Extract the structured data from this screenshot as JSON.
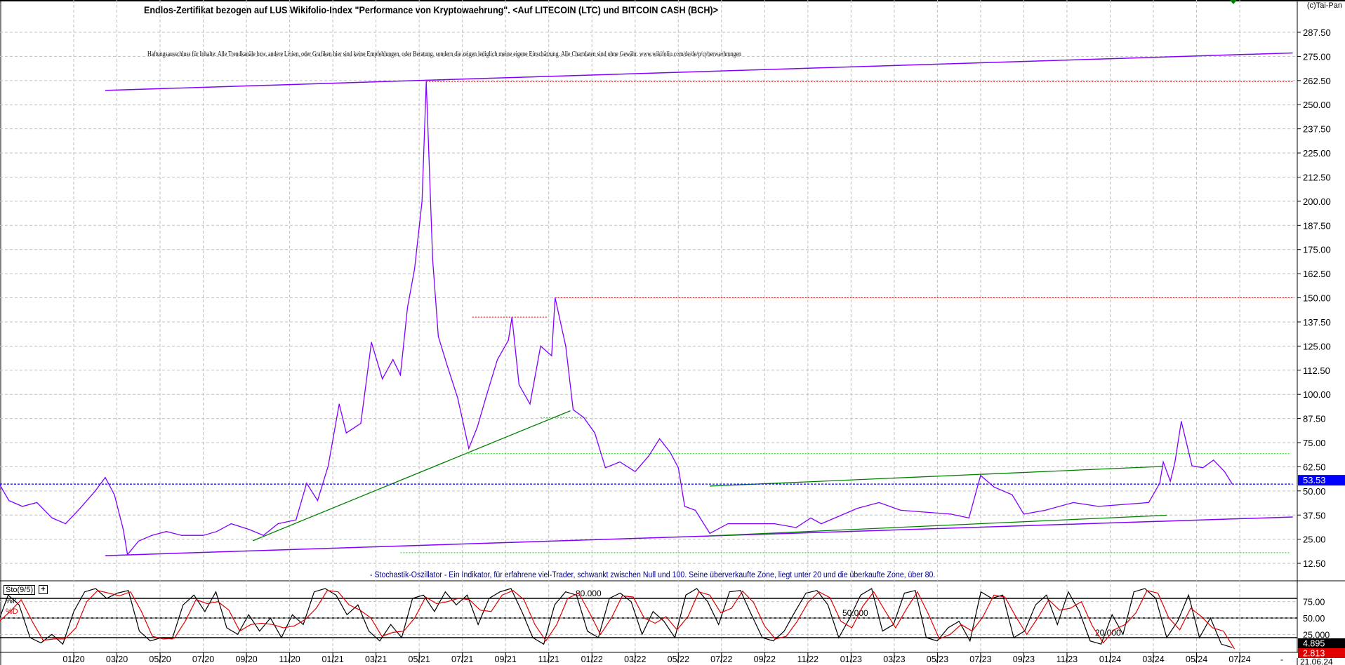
{
  "header": {
    "title": "Endlos-Zertifikat bezogen auf LUS Wikifolio-Index \"Performance von Kryptowaehrung\". <Auf LITECOIN (LTC) und BITCOIN CASH (BCH)>",
    "disclaimer": "Haftungsausschluss für Inhalte: Alle Trendkanäle bzw. andere Linien, oder Grafiken hier sind keine Empfehlungen, oder Beratung, sondern die zeigen lediglich meine eigene Einschätzung. Alle Chartdaten sind ohne Gewähr.  www.wikifolio.com/de/de/p/cyberwaehrungen",
    "copyright": "(c)Tai-Pan"
  },
  "stochastic_panel": {
    "label": "Sto(9/5)",
    "expand": "+",
    "k_label": "%K",
    "d_label": "%D",
    "description": "- Stochastik-Oszillator - Ein Indikator, für erfahrene viel-Trader, schwankt zwischen Null und 100. Seine überverkaufte Zone, liegt unter 20 und die überkaufte Zone, über 80."
  },
  "footer": {
    "dash": "-",
    "date": "21.06.24"
  },
  "colors": {
    "price": "#8000ff",
    "trend_green": "#008000",
    "dotted_green": "#00e000",
    "dotted_red": "#e00000",
    "current_blue": "#0000ff",
    "k": "#000000",
    "d": "#e00000"
  },
  "chart_data": [
    {
      "type": "line",
      "title": "",
      "grid": true,
      "y_axis_side": "right",
      "ylim": [
        12.5,
        287.5
      ],
      "y_ticks": [
        "12.50",
        "25.00",
        "37.50",
        "50.00",
        "62.50",
        "75.00",
        "87.50",
        "100.00",
        "112.50",
        "125.00",
        "137.50",
        "150.00",
        "162.50",
        "175.00",
        "187.50",
        "200.00",
        "212.50",
        "225.00",
        "237.50",
        "250.00",
        "262.50",
        "275.00",
        "287.50"
      ],
      "x_ticks": [
        "01/20",
        "03/20",
        "05/20",
        "07/20",
        "09/20",
        "11/20",
        "01/21",
        "03/21",
        "05/21",
        "07/21",
        "09/21",
        "11/21",
        "01/22",
        "03/22",
        "05/22",
        "07/22",
        "09/22",
        "11/22",
        "01/23",
        "03/23",
        "05/23",
        "07/23",
        "09/23",
        "11/23",
        "01/24",
        "03/24",
        "05/24",
        "07/24"
      ],
      "current_value": "53.53",
      "series": [
        {
          "points": [
            [
              "2019-09-15",
              53
            ],
            [
              "2019-10-01",
              45
            ],
            [
              "2019-10-20",
              42
            ],
            [
              "2019-11-10",
              44
            ],
            [
              "2019-12-01",
              36
            ],
            [
              "2019-12-20",
              33
            ],
            [
              "2020-01-10",
              41
            ],
            [
              "2020-02-01",
              50
            ],
            [
              "2020-02-15",
              57
            ],
            [
              "2020-02-28",
              48
            ],
            [
              "2020-03-10",
              30
            ],
            [
              "2020-03-16",
              17
            ],
            [
              "2020-04-01",
              24
            ],
            [
              "2020-04-20",
              27
            ],
            [
              "2020-05-10",
              29
            ],
            [
              "2020-06-01",
              27
            ],
            [
              "2020-07-01",
              27
            ],
            [
              "2020-07-20",
              29
            ],
            [
              "2020-08-10",
              33
            ],
            [
              "2020-09-05",
              30
            ],
            [
              "2020-09-25",
              27
            ],
            [
              "2020-10-15",
              33
            ],
            [
              "2020-11-10",
              35
            ],
            [
              "2020-11-25",
              54
            ],
            [
              "2020-12-10",
              45
            ],
            [
              "2020-12-25",
              63
            ],
            [
              "2021-01-10",
              95
            ],
            [
              "2021-01-20",
              80
            ],
            [
              "2021-02-10",
              85
            ],
            [
              "2021-02-25",
              127
            ],
            [
              "2021-03-10",
              108
            ],
            [
              "2021-03-25",
              118
            ],
            [
              "2021-04-05",
              110
            ],
            [
              "2021-04-15",
              145
            ],
            [
              "2021-04-25",
              165
            ],
            [
              "2021-05-05",
              200
            ],
            [
              "2021-05-11",
              262
            ],
            [
              "2021-05-20",
              170
            ],
            [
              "2021-05-28",
              130
            ],
            [
              "2021-06-10",
              115
            ],
            [
              "2021-06-25",
              98
            ],
            [
              "2021-07-10",
              72
            ],
            [
              "2021-07-22",
              83
            ],
            [
              "2021-08-05",
              100
            ],
            [
              "2021-08-20",
              118
            ],
            [
              "2021-09-05",
              128
            ],
            [
              "2021-09-10",
              140
            ],
            [
              "2021-09-20",
              105
            ],
            [
              "2021-10-05",
              95
            ],
            [
              "2021-10-20",
              125
            ],
            [
              "2021-11-05",
              120
            ],
            [
              "2021-11-10",
              150
            ],
            [
              "2021-11-25",
              125
            ],
            [
              "2021-12-05",
              92
            ],
            [
              "2021-12-20",
              88
            ],
            [
              "2022-01-05",
              80
            ],
            [
              "2022-01-20",
              62
            ],
            [
              "2022-02-10",
              65
            ],
            [
              "2022-03-01",
              60
            ],
            [
              "2022-03-20",
              68
            ],
            [
              "2022-04-05",
              77
            ],
            [
              "2022-04-20",
              70
            ],
            [
              "2022-05-01",
              62
            ],
            [
              "2022-05-10",
              42
            ],
            [
              "2022-05-25",
              40
            ],
            [
              "2022-06-15",
              28
            ],
            [
              "2022-07-10",
              33
            ],
            [
              "2022-08-10",
              33
            ],
            [
              "2022-09-15",
              33
            ],
            [
              "2022-10-15",
              31
            ],
            [
              "2022-11-05",
              36
            ],
            [
              "2022-11-20",
              33
            ],
            [
              "2022-12-15",
              37
            ],
            [
              "2023-01-10",
              41
            ],
            [
              "2023-02-10",
              44
            ],
            [
              "2023-03-10",
              40
            ],
            [
              "2023-04-15",
              39
            ],
            [
              "2023-05-20",
              38
            ],
            [
              "2023-06-15",
              36
            ],
            [
              "2023-07-01",
              58
            ],
            [
              "2023-07-20",
              52
            ],
            [
              "2023-08-15",
              48
            ],
            [
              "2023-09-01",
              38
            ],
            [
              "2023-10-01",
              40
            ],
            [
              "2023-11-10",
              44
            ],
            [
              "2023-12-15",
              42
            ],
            [
              "2024-01-20",
              43
            ],
            [
              "2024-02-25",
              44
            ],
            [
              "2024-03-10",
              54
            ],
            [
              "2024-03-15",
              65
            ],
            [
              "2024-03-25",
              55
            ],
            [
              "2024-04-01",
              65
            ],
            [
              "2024-04-10",
              86
            ],
            [
              "2024-04-25",
              63
            ],
            [
              "2024-05-10",
              62
            ],
            [
              "2024-05-25",
              66
            ],
            [
              "2024-06-10",
              60
            ],
            [
              "2024-06-21",
              53.53
            ]
          ]
        }
      ],
      "trendlines": [
        {
          "kind": "purple-solid",
          "from": [
            "2020-02-15",
            257.4
          ],
          "to": [
            "2024-09-15",
            276.8
          ]
        },
        {
          "kind": "purple-solid",
          "from": [
            "2020-02-15",
            16.5
          ],
          "to": [
            "2024-09-15",
            36.5
          ]
        },
        {
          "kind": "green-solid",
          "from": [
            "2020-09-10",
            24.2
          ],
          "to": [
            "2021-12-01",
            91.5
          ]
        },
        {
          "kind": "green-solid",
          "from": [
            "2022-06-15",
            52.5
          ],
          "to": [
            "2024-03-15",
            62.7
          ]
        },
        {
          "kind": "green-solid",
          "from": [
            "2022-06-15",
            26.7
          ],
          "to": [
            "2024-03-20",
            37.4
          ]
        },
        {
          "kind": "red-dotted",
          "from": [
            "2021-05-11",
            262
          ],
          "to": [
            "2024-09-15",
            262
          ]
        },
        {
          "kind": "red-dotted",
          "from": [
            "2021-11-10",
            150
          ],
          "to": [
            "2024-09-15",
            150
          ]
        },
        {
          "kind": "red-dotted",
          "from": [
            "2021-07-15",
            140
          ],
          "to": [
            "2021-10-30",
            140
          ]
        },
        {
          "kind": "green-dotted",
          "from": [
            "2021-10-20",
            88
          ],
          "to": [
            "2021-12-25",
            88
          ]
        },
        {
          "kind": "green-dotted",
          "from": [
            "2021-07-05",
            69.3
          ],
          "to": [
            "2024-09-10",
            69.3
          ]
        },
        {
          "kind": "green-dotted",
          "from": [
            "2021-04-05",
            18
          ],
          "to": [
            "2024-09-10",
            18
          ]
        },
        {
          "kind": "blue-dotted",
          "from": [
            "2019-09-15",
            53.53
          ],
          "to": [
            "2024-09-15",
            53.53
          ]
        }
      ]
    },
    {
      "type": "line",
      "title": "Sto(9/5)",
      "ylim": [
        0,
        100
      ],
      "y_ticks": [
        "25.000",
        "50.00",
        "75.00"
      ],
      "levels": [
        {
          "value": 80,
          "label": "80.000"
        },
        {
          "value": 50,
          "label": "50.000"
        },
        {
          "value": 20,
          "label": "20.000"
        }
      ],
      "date_range": [
        "2019-09-15",
        "2024-06-21"
      ],
      "current_k": "4.895",
      "current_d": "2.813",
      "series": [
        {
          "name": "%K",
          "values": [
            40,
            85,
            70,
            20,
            12,
            25,
            10,
            60,
            90,
            95,
            80,
            88,
            92,
            30,
            15,
            20,
            18,
            70,
            85,
            60,
            90,
            35,
            25,
            55,
            30,
            50,
            20,
            55,
            40,
            90,
            95,
            85,
            55,
            70,
            30,
            15,
            40,
            20,
            80,
            85,
            60,
            90,
            70,
            85,
            40,
            80,
            90,
            95,
            60,
            20,
            10,
            70,
            90,
            85,
            30,
            20,
            80,
            88,
            75,
            25,
            60,
            45,
            20,
            85,
            95,
            75,
            40,
            90,
            92,
            55,
            20,
            15,
            30,
            60,
            88,
            92,
            70,
            20,
            50,
            85,
            95,
            30,
            40,
            88,
            92,
            20,
            15,
            35,
            45,
            15,
            90,
            80,
            85,
            20,
            30,
            70,
            85,
            40,
            90,
            60,
            15,
            10,
            55,
            25,
            90,
            95,
            80,
            20,
            45,
            85,
            20,
            50,
            10,
            4.895
          ]
        },
        {
          "name": "%D",
          "values": [
            45,
            60,
            78,
            45,
            16,
            18,
            18,
            35,
            75,
            92,
            88,
            84,
            90,
            60,
            22,
            18,
            19,
            45,
            78,
            72,
            75,
            62,
            30,
            40,
            42,
            40,
            35,
            38,
            48,
            65,
            92,
            90,
            70,
            62,
            50,
            22,
            28,
            30,
            50,
            82,
            72,
            75,
            80,
            78,
            62,
            60,
            85,
            92,
            78,
            40,
            15,
            40,
            80,
            88,
            58,
            25,
            50,
            84,
            82,
            50,
            42,
            52,
            32,
            52,
            90,
            85,
            58,
            65,
            91,
            74,
            38,
            18,
            22,
            45,
            74,
            90,
            81,
            45,
            35,
            68,
            90,
            62,
            35,
            64,
            90,
            56,
            18,
            25,
            40,
            30,
            52,
            85,
            82,
            52,
            25,
            50,
            78,
            62,
            65,
            75,
            38,
            12,
            32,
            40,
            58,
            92,
            88,
            50,
            32,
            65,
            52,
            35,
            30,
            2.813
          ]
        }
      ]
    }
  ]
}
